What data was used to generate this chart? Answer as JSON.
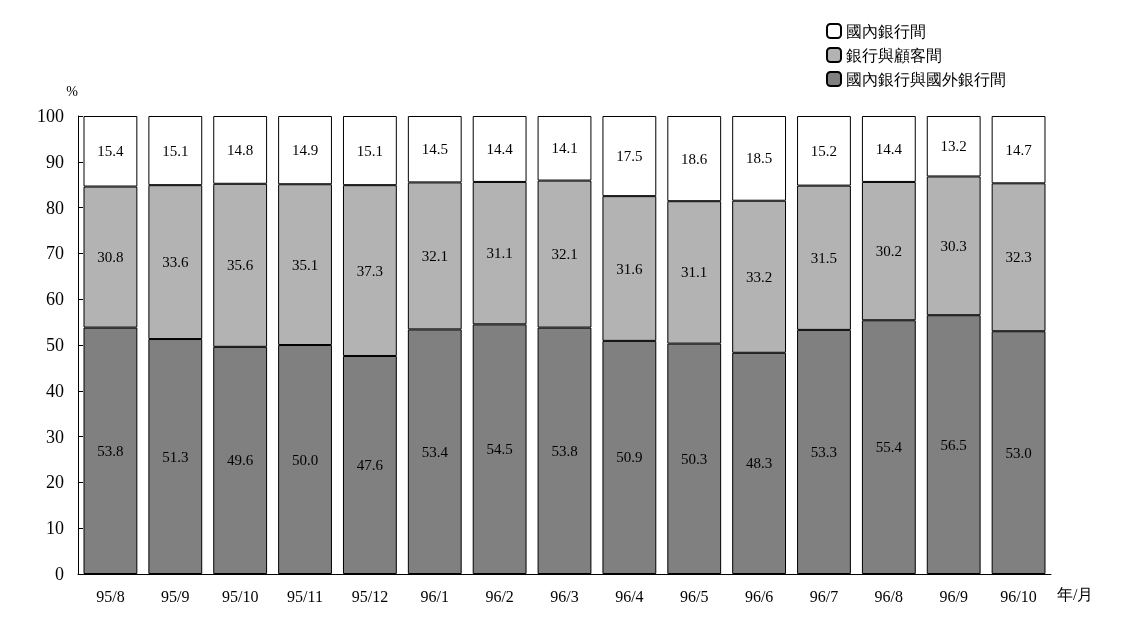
{
  "chart_data": {
    "type": "bar",
    "stacked": true,
    "legend": "top right",
    "xlabel": "年/月",
    "ylabel": "%",
    "categories": [
      "95/8",
      "95/9",
      "95/10",
      "95/11",
      "95/12",
      "96/1",
      "96/2",
      "96/3",
      "96/4",
      "96/5",
      "96/6",
      "96/7",
      "96/8",
      "96/9",
      "96/10"
    ],
    "ylim": [
      0,
      100
    ],
    "yticks": [
      0,
      10,
      20,
      30,
      40,
      50,
      60,
      70,
      80,
      90,
      100
    ],
    "series": [
      {
        "name": "國內銀行與國外銀行間",
        "color": "#808080",
        "values": [
          53.8,
          51.3,
          49.6,
          50.0,
          47.6,
          53.4,
          54.5,
          53.8,
          50.9,
          50.3,
          48.3,
          53.3,
          55.4,
          56.5,
          53.0
        ],
        "value_labels": [
          "53.8",
          "51.3",
          "49.6",
          "50.0",
          "47.6",
          "53.4",
          "54.5",
          "53.8",
          "50.9",
          "50.3",
          "48.3",
          "53.3",
          "55.4",
          "56.5",
          "53.0"
        ]
      },
      {
        "name": "銀行與顧客間",
        "color": "#b3b3b3",
        "values": [
          30.8,
          33.6,
          35.6,
          35.1,
          37.3,
          32.1,
          31.1,
          32.1,
          31.6,
          31.1,
          33.2,
          31.5,
          30.2,
          30.3,
          32.3
        ],
        "value_labels": [
          "30.8",
          "33.6",
          "35.6",
          "35.1",
          "37.3",
          "32.1",
          "31.1",
          "32.1",
          "31.6",
          "31.1",
          "33.2",
          "31.5",
          "30.2",
          "30.3",
          "32.3"
        ]
      },
      {
        "name": "國內銀行間",
        "color": "#ffffff",
        "values": [
          15.4,
          15.1,
          14.8,
          14.9,
          15.1,
          14.5,
          14.4,
          14.1,
          17.5,
          18.6,
          18.5,
          15.2,
          14.4,
          13.2,
          14.7
        ],
        "value_labels": [
          "15.4",
          "15.1",
          "14.8",
          "14.9",
          "15.1",
          "14.5",
          "14.4",
          "14.1",
          "17.5",
          "18.6",
          "18.5",
          "15.2",
          "14.4",
          "13.2",
          "14.7"
        ]
      }
    ]
  }
}
